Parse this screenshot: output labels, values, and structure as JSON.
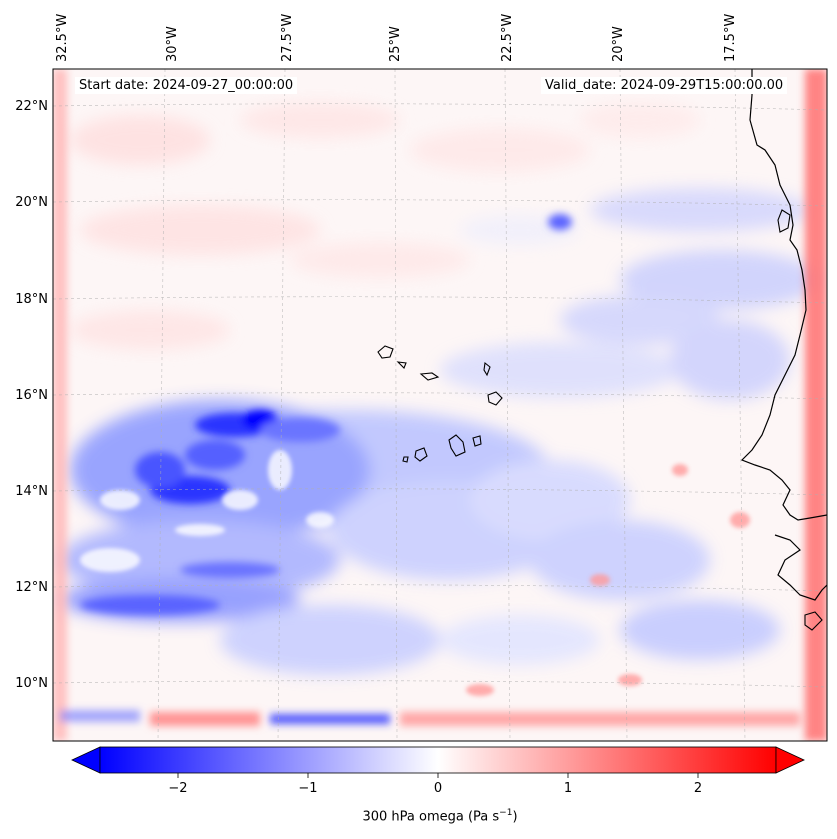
{
  "map": {
    "lon_labels": [
      "32.5°W",
      "30°W",
      "27.5°W",
      "25°W",
      "22.5°W",
      "20°W",
      "17.5°W"
    ],
    "lat_labels": [
      "22°N",
      "20°N",
      "18°N",
      "16°N",
      "14°N",
      "12°N",
      "10°N"
    ],
    "start_date": "Start date: 2024-09-27_00:00:00",
    "valid_date": "Valid_date: 2024-09-29T15:00:00.00",
    "extent": {
      "lon_min": -32.5,
      "lon_max": -15.0,
      "lat_min": 9.0,
      "lat_max": 22.8
    },
    "colors": {
      "negative": "#0000ff",
      "zero": "#ffffff",
      "positive": "#ff0000",
      "coast": "#000000"
    }
  },
  "colorbar": {
    "ticks": [
      "−2",
      "−1",
      "0",
      "1",
      "2"
    ],
    "tick_values": [
      -2,
      -1,
      0,
      1,
      2
    ],
    "range": [
      -2.6,
      2.6
    ],
    "label_main": "300 hPa omega (Pa s",
    "label_sup": "−1",
    "label_end": ")"
  }
}
